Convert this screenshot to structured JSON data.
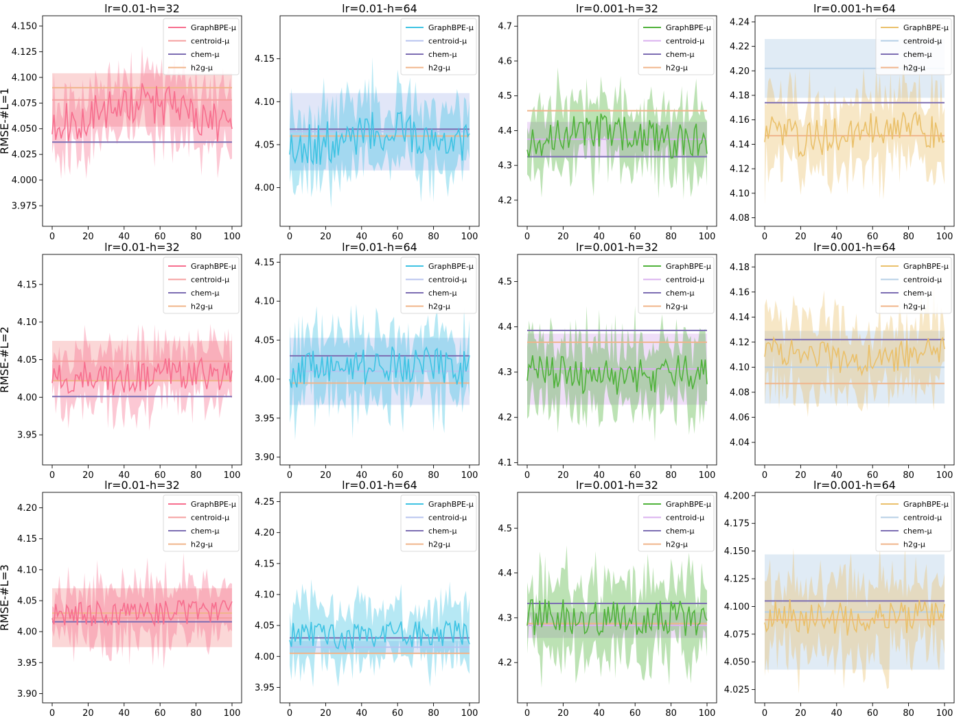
{
  "figure": {
    "row_labels": [
      "RMSE-#L=1",
      "RMSE-#L=2",
      "RMSE-#L=3"
    ],
    "column_titles": [
      "lr=0.01-h=32",
      "lr=0.01-h=64",
      "lr=0.001-h=32",
      "lr=0.001-h=64"
    ],
    "legend_labels": [
      "GraphBPE-μ",
      "centroid-μ",
      "chem-μ",
      "h2g-μ"
    ],
    "column_colors": {
      "graphbpe": [
        "#f76e8e",
        "#3ec3e3",
        "#4fb23a",
        "#eac06a"
      ],
      "centroid": [
        "#f59f9f",
        "#b7c3ef",
        "#dab0ef",
        "#b5cfe6"
      ],
      "chem": "#7b6cb2",
      "h2g": "#f0b48a"
    }
  },
  "chart_data": [
    {
      "type": "line",
      "row": 0,
      "col": 0,
      "title": "lr=0.01-h=32",
      "ylabel": "RMSE-#L=1",
      "xlabel": "",
      "x_range": [
        0,
        100
      ],
      "ylim": [
        3.955,
        4.16
      ],
      "yticks": [
        3.975,
        4.0,
        4.025,
        4.05,
        4.075,
        4.1,
        4.125,
        4.15
      ],
      "xticks": [
        0,
        20,
        40,
        60,
        80,
        100
      ],
      "ytick_labels": [
        "3.975",
        "4.000",
        "4.025",
        "4.050",
        "4.075",
        "4.100",
        "4.125",
        "4.150"
      ],
      "xtick_labels": [
        "0",
        "20",
        "40",
        "60",
        "80",
        "100"
      ],
      "legend_position": "top-right",
      "series": [
        {
          "name": "GraphBPE-μ",
          "kind": "noisy_line",
          "mean": 4.065,
          "amplitude": 0.02,
          "band": 0.03,
          "seed": 11,
          "trend": 0.01
        },
        {
          "name": "centroid-μ",
          "kind": "constant",
          "value": 4.078,
          "band": [
            4.052,
            4.104
          ]
        },
        {
          "name": "chem-μ",
          "kind": "constant",
          "value": 4.037
        },
        {
          "name": "h2g-μ",
          "kind": "constant",
          "value": 4.09
        }
      ]
    },
    {
      "type": "line",
      "row": 0,
      "col": 1,
      "title": "lr=0.01-h=64",
      "ylabel": "",
      "xlabel": "",
      "x_range": [
        0,
        100
      ],
      "ylim": [
        3.955,
        4.2
      ],
      "yticks": [
        4.0,
        4.05,
        4.1,
        4.15
      ],
      "xticks": [
        0,
        20,
        40,
        60,
        80,
        100
      ],
      "ytick_labels": [
        "4.00",
        "4.05",
        "4.10",
        "4.15"
      ],
      "xtick_labels": [
        "0",
        "20",
        "40",
        "60",
        "80",
        "100"
      ],
      "legend_position": "top-right",
      "series": [
        {
          "name": "GraphBPE-μ",
          "kind": "noisy_line",
          "mean": 4.058,
          "amplitude": 0.025,
          "band": 0.04,
          "seed": 23,
          "trend": 0.008
        },
        {
          "name": "centroid-μ",
          "kind": "constant",
          "value": 4.065,
          "band": [
            4.02,
            4.11
          ]
        },
        {
          "name": "chem-μ",
          "kind": "constant",
          "value": 4.068
        },
        {
          "name": "h2g-μ",
          "kind": "constant",
          "value": 4.06
        }
      ]
    },
    {
      "type": "line",
      "row": 0,
      "col": 2,
      "title": "lr=0.001-h=32",
      "ylabel": "",
      "xlabel": "",
      "x_range": [
        0,
        100
      ],
      "ylim": [
        4.125,
        4.73
      ],
      "yticks": [
        4.2,
        4.3,
        4.4,
        4.5,
        4.6,
        4.7
      ],
      "xticks": [
        0,
        20,
        40,
        60,
        80,
        100
      ],
      "ytick_labels": [
        "4.2",
        "4.3",
        "4.4",
        "4.5",
        "4.6",
        "4.7"
      ],
      "xtick_labels": [
        "0",
        "20",
        "40",
        "60",
        "80",
        "100"
      ],
      "legend_position": "top-right",
      "series": [
        {
          "name": "GraphBPE-μ",
          "kind": "noisy_line",
          "mean": 4.385,
          "amplitude": 0.055,
          "band": 0.09,
          "seed": 37,
          "trend": 0.02
        },
        {
          "name": "centroid-μ",
          "kind": "constant",
          "value": 4.375,
          "band": [
            4.325,
            4.425
          ]
        },
        {
          "name": "chem-μ",
          "kind": "constant",
          "value": 4.325
        },
        {
          "name": "h2g-μ",
          "kind": "constant",
          "value": 4.457
        }
      ]
    },
    {
      "type": "line",
      "row": 0,
      "col": 3,
      "title": "lr=0.001-h=64",
      "ylabel": "",
      "xlabel": "",
      "x_range": [
        0,
        100
      ],
      "ylim": [
        4.073,
        4.245
      ],
      "yticks": [
        4.08,
        4.1,
        4.12,
        4.14,
        4.16,
        4.18,
        4.2,
        4.22,
        4.24
      ],
      "xticks": [
        0,
        20,
        40,
        60,
        80,
        100
      ],
      "ytick_labels": [
        "4.08",
        "4.10",
        "4.12",
        "4.14",
        "4.16",
        "4.18",
        "4.20",
        "4.22",
        "4.24"
      ],
      "xtick_labels": [
        "0",
        "20",
        "40",
        "60",
        "80",
        "100"
      ],
      "legend_position": "top-right",
      "series": [
        {
          "name": "GraphBPE-μ",
          "kind": "noisy_line",
          "mean": 4.15,
          "amplitude": 0.015,
          "band": 0.03,
          "seed": 41,
          "trend": 0.005
        },
        {
          "name": "centroid-μ",
          "kind": "constant",
          "value": 4.202,
          "band": [
            4.178,
            4.226
          ]
        },
        {
          "name": "chem-μ",
          "kind": "constant",
          "value": 4.174
        },
        {
          "name": "h2g-μ",
          "kind": "constant",
          "value": 4.147
        }
      ]
    },
    {
      "type": "line",
      "row": 1,
      "col": 0,
      "title": "lr=0.01-h=32",
      "ylabel": "RMSE-#L=2",
      "xlabel": "",
      "x_range": [
        0,
        100
      ],
      "ylim": [
        3.91,
        4.19
      ],
      "yticks": [
        3.95,
        4.0,
        4.05,
        4.1,
        4.15
      ],
      "xticks": [
        0,
        20,
        40,
        60,
        80,
        100
      ],
      "ytick_labels": [
        "3.95",
        "4.00",
        "4.05",
        "4.10",
        "4.15"
      ],
      "xtick_labels": [
        "0",
        "20",
        "40",
        "60",
        "80",
        "100"
      ],
      "legend_position": "top-right",
      "series": [
        {
          "name": "GraphBPE-μ",
          "kind": "noisy_line",
          "mean": 4.028,
          "amplitude": 0.022,
          "band": 0.04,
          "seed": 53,
          "trend": 0.004
        },
        {
          "name": "centroid-μ",
          "kind": "constant",
          "value": 4.048,
          "band": [
            4.022,
            4.075
          ]
        },
        {
          "name": "chem-μ",
          "kind": "constant",
          "value": 4.001
        },
        {
          "name": "h2g-μ",
          "kind": "constant",
          "value": 4.022
        }
      ]
    },
    {
      "type": "line",
      "row": 1,
      "col": 1,
      "title": "lr=0.01-h=64",
      "ylabel": "",
      "xlabel": "",
      "x_range": [
        0,
        100
      ],
      "ylim": [
        3.89,
        4.16
      ],
      "yticks": [
        3.9,
        3.95,
        4.0,
        4.05,
        4.1,
        4.15
      ],
      "xticks": [
        0,
        20,
        40,
        60,
        80,
        100
      ],
      "ytick_labels": [
        "3.90",
        "3.95",
        "4.00",
        "4.05",
        "4.10",
        "4.15"
      ],
      "xtick_labels": [
        "0",
        "20",
        "40",
        "60",
        "80",
        "100"
      ],
      "legend_position": "top-right",
      "series": [
        {
          "name": "GraphBPE-μ",
          "kind": "noisy_line",
          "mean": 4.015,
          "amplitude": 0.025,
          "band": 0.045,
          "seed": 61,
          "trend": 0.003
        },
        {
          "name": "centroid-μ",
          "kind": "constant",
          "value": 4.01,
          "band": [
            3.967,
            4.053
          ]
        },
        {
          "name": "chem-μ",
          "kind": "constant",
          "value": 4.03
        },
        {
          "name": "h2g-μ",
          "kind": "constant",
          "value": 3.995
        }
      ]
    },
    {
      "type": "line",
      "row": 1,
      "col": 2,
      "title": "lr=0.001-h=32",
      "ylabel": "",
      "xlabel": "",
      "x_range": [
        0,
        100
      ],
      "ylim": [
        4.095,
        4.56
      ],
      "yticks": [
        4.1,
        4.2,
        4.3,
        4.4,
        4.5
      ],
      "xticks": [
        0,
        20,
        40,
        60,
        80,
        100
      ],
      "ytick_labels": [
        "4.1",
        "4.2",
        "4.3",
        "4.4",
        "4.5"
      ],
      "xtick_labels": [
        "0",
        "20",
        "40",
        "60",
        "80",
        "100"
      ],
      "legend_position": "top-right",
      "series": [
        {
          "name": "GraphBPE-μ",
          "kind": "noisy_line",
          "mean": 4.295,
          "amplitude": 0.04,
          "band": 0.08,
          "seed": 71,
          "trend": 0.005
        },
        {
          "name": "centroid-μ",
          "kind": "constant",
          "value": 4.307,
          "band": [
            4.228,
            4.385
          ]
        },
        {
          "name": "chem-μ",
          "kind": "constant",
          "value": 4.392
        },
        {
          "name": "h2g-μ",
          "kind": "constant",
          "value": 4.366
        }
      ]
    },
    {
      "type": "line",
      "row": 1,
      "col": 3,
      "title": "lr=0.001-h=64",
      "ylabel": "",
      "xlabel": "",
      "x_range": [
        0,
        100
      ],
      "ylim": [
        4.022,
        4.19
      ],
      "yticks": [
        4.04,
        4.06,
        4.08,
        4.1,
        4.12,
        4.14,
        4.16,
        4.18
      ],
      "xticks": [
        0,
        20,
        40,
        60,
        80,
        100
      ],
      "ytick_labels": [
        "4.04",
        "4.06",
        "4.08",
        "4.10",
        "4.12",
        "4.14",
        "4.16",
        "4.18"
      ],
      "xtick_labels": [
        "0",
        "20",
        "40",
        "60",
        "80",
        "100"
      ],
      "legend_position": "top-right",
      "series": [
        {
          "name": "GraphBPE-μ",
          "kind": "noisy_line",
          "mean": 4.11,
          "amplitude": 0.012,
          "band": 0.03,
          "seed": 83,
          "trend": 0.004
        },
        {
          "name": "centroid-μ",
          "kind": "constant",
          "value": 4.1,
          "band": [
            4.071,
            4.129
          ]
        },
        {
          "name": "chem-μ",
          "kind": "constant",
          "value": 4.122
        },
        {
          "name": "h2g-μ",
          "kind": "constant",
          "value": 4.087
        }
      ]
    },
    {
      "type": "line",
      "row": 2,
      "col": 0,
      "title": "lr=0.01-h=32",
      "ylabel": "RMSE-#L=3",
      "xlabel": "",
      "x_range": [
        0,
        100
      ],
      "ylim": [
        3.885,
        4.225
      ],
      "yticks": [
        3.9,
        3.95,
        4.0,
        4.05,
        4.1,
        4.15,
        4.2
      ],
      "xticks": [
        0,
        20,
        40,
        60,
        80,
        100
      ],
      "ytick_labels": [
        "3.90",
        "3.95",
        "4.00",
        "4.05",
        "4.10",
        "4.15",
        "4.20"
      ],
      "xtick_labels": [
        "0",
        "20",
        "40",
        "60",
        "80",
        "100"
      ],
      "legend_position": "top-right",
      "series": [
        {
          "name": "GraphBPE-μ",
          "kind": "noisy_line",
          "mean": 4.03,
          "amplitude": 0.02,
          "band": 0.045,
          "seed": 97,
          "trend": 0.002
        },
        {
          "name": "centroid-μ",
          "kind": "constant",
          "value": 4.022,
          "band": [
            3.975,
            4.07
          ]
        },
        {
          "name": "chem-μ",
          "kind": "constant",
          "value": 4.016
        },
        {
          "name": "h2g-μ",
          "kind": "constant",
          "value": 4.03
        }
      ]
    },
    {
      "type": "line",
      "row": 2,
      "col": 1,
      "title": "lr=0.01-h=64",
      "ylabel": "",
      "xlabel": "",
      "x_range": [
        0,
        100
      ],
      "ylim": [
        3.925,
        4.265
      ],
      "yticks": [
        3.95,
        4.0,
        4.05,
        4.1,
        4.15,
        4.2,
        4.25
      ],
      "xticks": [
        0,
        20,
        40,
        60,
        80,
        100
      ],
      "ytick_labels": [
        "3.95",
        "4.00",
        "4.05",
        "4.10",
        "4.15",
        "4.20",
        "4.25"
      ],
      "xtick_labels": [
        "0",
        "20",
        "40",
        "60",
        "80",
        "100"
      ],
      "legend_position": "top-right",
      "series": [
        {
          "name": "GraphBPE-μ",
          "kind": "noisy_line",
          "mean": 4.035,
          "amplitude": 0.022,
          "band": 0.045,
          "seed": 103,
          "trend": 0.002
        },
        {
          "name": "centroid-μ",
          "kind": "constant",
          "value": 4.015,
          "band": [
            4.005,
            4.025
          ]
        },
        {
          "name": "chem-μ",
          "kind": "constant",
          "value": 4.03
        },
        {
          "name": "h2g-μ",
          "kind": "constant",
          "value": 4.005
        }
      ]
    },
    {
      "type": "line",
      "row": 2,
      "col": 2,
      "title": "lr=0.001-h=32",
      "ylabel": "",
      "xlabel": "",
      "x_range": [
        0,
        100
      ],
      "ylim": [
        4.11,
        4.58
      ],
      "yticks": [
        4.2,
        4.3,
        4.4,
        4.5
      ],
      "xticks": [
        0,
        20,
        40,
        60,
        80,
        100
      ],
      "ytick_labels": [
        "4.2",
        "4.3",
        "4.4",
        "4.5"
      ],
      "xtick_labels": [
        "0",
        "20",
        "40",
        "60",
        "80",
        "100"
      ],
      "legend_position": "top-right",
      "series": [
        {
          "name": "GraphBPE-μ",
          "kind": "noisy_line",
          "mean": 4.3,
          "amplitude": 0.04,
          "band": 0.085,
          "seed": 113,
          "trend": 0.002
        },
        {
          "name": "centroid-μ",
          "kind": "constant",
          "value": 4.283,
          "band": [
            4.255,
            4.312
          ]
        },
        {
          "name": "chem-μ",
          "kind": "constant",
          "value": 4.332
        },
        {
          "name": "h2g-μ",
          "kind": "constant",
          "value": 4.287
        }
      ]
    },
    {
      "type": "line",
      "row": 2,
      "col": 3,
      "title": "lr=0.001-h=64",
      "ylabel": "",
      "xlabel": "",
      "x_range": [
        0,
        100
      ],
      "ylim": [
        4.013,
        4.203
      ],
      "yticks": [
        4.025,
        4.05,
        4.075,
        4.1,
        4.125,
        4.15,
        4.175,
        4.2
      ],
      "xticks": [
        0,
        20,
        40,
        60,
        80,
        100
      ],
      "ytick_labels": [
        "4.025",
        "4.050",
        "4.075",
        "4.100",
        "4.125",
        "4.150",
        "4.175",
        "4.200"
      ],
      "xtick_labels": [
        "0",
        "20",
        "40",
        "60",
        "80",
        "100"
      ],
      "legend_position": "top-right",
      "series": [
        {
          "name": "GraphBPE-μ",
          "kind": "noisy_line",
          "mean": 4.09,
          "amplitude": 0.015,
          "band": 0.035,
          "seed": 127,
          "trend": 0.002
        },
        {
          "name": "centroid-μ",
          "kind": "constant",
          "value": 4.095,
          "band": [
            4.043,
            4.147
          ]
        },
        {
          "name": "chem-μ",
          "kind": "constant",
          "value": 4.105
        },
        {
          "name": "h2g-μ",
          "kind": "constant",
          "value": 4.088
        }
      ]
    }
  ]
}
